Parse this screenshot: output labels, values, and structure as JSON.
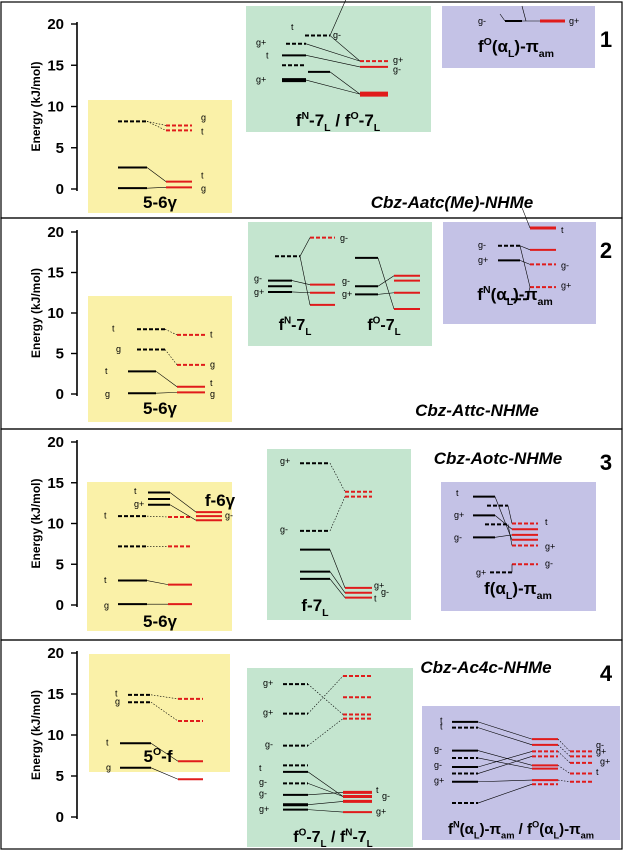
{
  "axis": {
    "ylabel": "Energy (kJ/mol)",
    "ticks": [
      "0",
      "5",
      "10",
      "15",
      "20"
    ]
  },
  "colors": {
    "yellow_box": "#faf1a8",
    "green_box": "#c4e5cf",
    "purple_box": "#c4c2e6",
    "black_level": "#000000",
    "red_level": "#e01b1b",
    "panel_border": "#000000"
  },
  "panels": [
    {
      "number": "1",
      "compound": "Cbz-Aatc(Me)-NHMe",
      "yellow": {
        "label": "5-6γ",
        "tags": [
          "g",
          "t",
          "t",
          "g"
        ]
      },
      "green": {
        "label_parts": [
          "f",
          "N",
          "-7",
          "L",
          " / f",
          "O",
          "-7",
          "L"
        ],
        "tags": [
          "t",
          "g+",
          "g-",
          "t",
          "g+",
          "g-"
        ]
      },
      "purple": {
        "label_parts": [
          "f",
          "O",
          "(α",
          "L",
          ")-π",
          "am"
        ],
        "tags": [
          "g-",
          "g+"
        ]
      }
    },
    {
      "number": "2",
      "compound": "Cbz-Attc-NHMe",
      "yellow": {
        "label": "5-6γ",
        "tags": [
          "t",
          "t",
          "g",
          "g",
          "t",
          "t",
          "g",
          "g"
        ]
      },
      "green": {
        "label_a_parts": [
          "f",
          "N",
          "-7",
          "L"
        ],
        "label_b_parts": [
          "f",
          "O",
          "-7",
          "L"
        ],
        "tags": [
          "g-",
          "g-",
          "g+",
          "g-",
          "g+"
        ]
      },
      "purple": {
        "label_parts": [
          "f",
          "N",
          "(α",
          "L",
          ")-π",
          "am"
        ],
        "tags": [
          "g-",
          "g+",
          "t",
          "g-",
          "g+"
        ]
      }
    },
    {
      "number": "3",
      "compound": "Cbz-Aotc-NHMe",
      "yellow": {
        "label": "5-6γ",
        "label2": "f-6γ",
        "tags": [
          "t",
          "g+",
          "t",
          "g-",
          "t",
          "g"
        ]
      },
      "green": {
        "label_parts": [
          "f-7",
          "L"
        ],
        "tags": [
          "g+",
          "g-",
          "g+",
          "g-",
          "t"
        ]
      },
      "purple": {
        "label_parts": [
          "f(α",
          "L",
          ")-π",
          "am"
        ],
        "tags": [
          "t",
          "g+",
          "g-",
          "t",
          "g+",
          "g-",
          "g+"
        ]
      }
    },
    {
      "number": "4",
      "compound": "Cbz-Ac4c-NHMe",
      "yellow": {
        "label_parts": [
          "5",
          "O",
          "-f"
        ],
        "tags": [
          "t",
          "g",
          "t",
          "g"
        ]
      },
      "green": {
        "label_parts": [
          "f",
          "O",
          "-7",
          "L",
          " / f",
          "N",
          "-7",
          "L"
        ],
        "tags": [
          "g+",
          "g+",
          "g-",
          "g-",
          "t",
          "g-",
          "g+",
          "t",
          "g-",
          "g+"
        ]
      },
      "purple": {
        "label_parts": [
          "f",
          "N",
          "(α",
          "L",
          ")-π",
          "am",
          " / f",
          "O",
          "(α",
          "L",
          ")-π",
          "am"
        ],
        "tags": [
          "t",
          "t",
          "g-",
          "g-",
          "g+",
          "g-",
          "g+",
          "g+",
          "t"
        ]
      }
    }
  ]
}
